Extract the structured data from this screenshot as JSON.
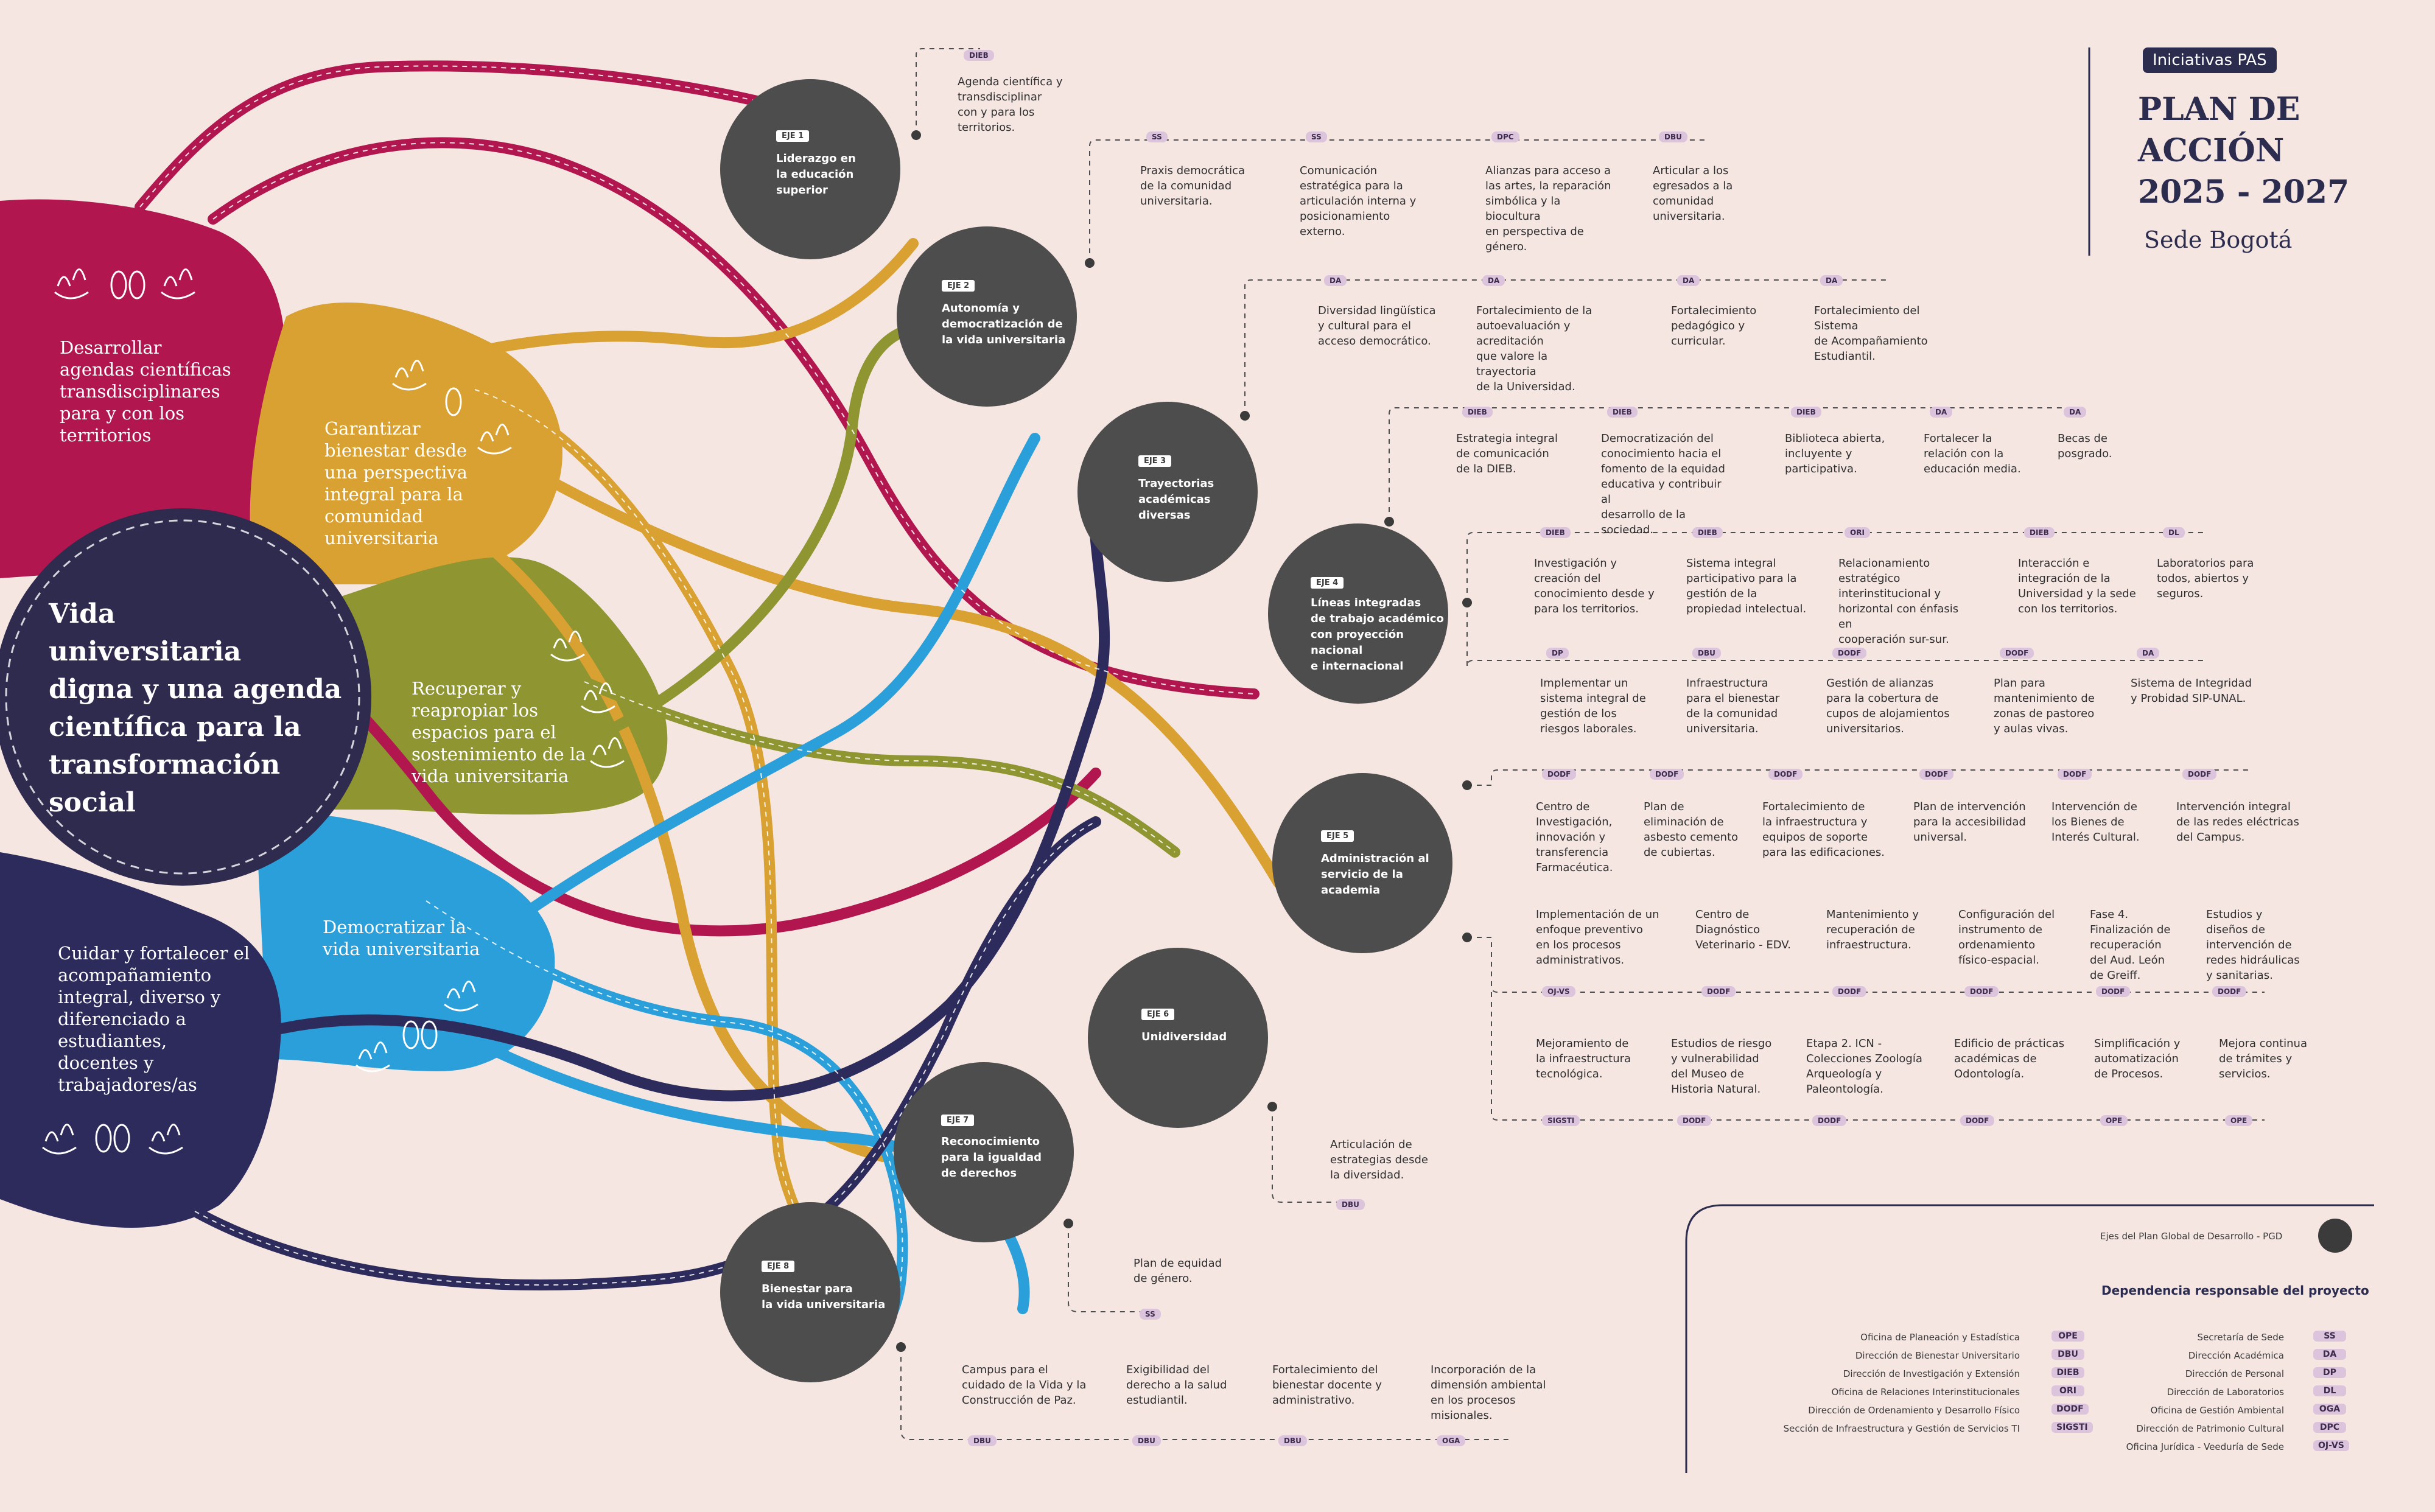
{
  "colors": {
    "background": "#f5e6e2",
    "magenta": "#b1174e",
    "gold": "#d9a131",
    "olive": "#8e9531",
    "blue": "#2a9fda",
    "navy": "#2d2b5b",
    "center": "#2f2b4f",
    "node": "#4d4d4d",
    "tag": "#dcc4dd"
  },
  "header": {
    "badge": "Iniciativas PAS",
    "title_line1": "PLAN DE",
    "title_line2": "ACCIÓN",
    "title_line3": "2025 - 2027",
    "subtitle": "Sede Bogotá"
  },
  "center": {
    "line1": "Vida",
    "line2": "universitaria",
    "line3": "digna y una agenda",
    "line4": "científica para la",
    "line5": "transformación",
    "line6": "social"
  },
  "petals": {
    "magenta": [
      "Desarrollar",
      "agendas científicas",
      "transdisciplinares",
      "para y con los",
      "territorios"
    ],
    "gold": [
      "Garantizar",
      "bienestar desde",
      "una perspectiva",
      "integral para la",
      "comunidad",
      "universitaria"
    ],
    "olive": [
      "Recuperar y",
      "reapropiar los",
      "espacios para el",
      "sostenimiento de la",
      "vida universitaria"
    ],
    "blue": [
      "Democratizar la",
      "vida universitaria"
    ],
    "navy": [
      "Cuidar y fortalecer el",
      "acompañamiento",
      "integral, diverso y",
      "diferenciado a",
      "estudiantes,",
      "docentes y",
      "trabajadores/as"
    ]
  },
  "ejes": [
    {
      "label": "EJE 1",
      "title": [
        "Liderazgo en",
        "la educación",
        "superior"
      ]
    },
    {
      "label": "EJE 2",
      "title": [
        "Autonomía y",
        "democratización de",
        "la vida universitaria"
      ]
    },
    {
      "label": "EJE 3",
      "title": [
        "Trayectorias",
        "académicas",
        "diversas"
      ]
    },
    {
      "label": "EJE 4",
      "title": [
        "Líneas integradas",
        "de trabajo académico",
        "con proyección",
        "nacional",
        "e internacional"
      ]
    },
    {
      "label": "EJE 5",
      "title": [
        "Administración al",
        "servicio de la",
        "academia"
      ]
    },
    {
      "label": "EJE 6",
      "title": [
        "Unidiversidad"
      ]
    },
    {
      "label": "EJE 7",
      "title": [
        "Reconocimiento",
        "para la igualdad",
        "de derechos"
      ]
    },
    {
      "label": "EJE 8",
      "title": [
        "Bienestar para",
        "la vida universitaria"
      ]
    }
  ],
  "initiatives": {
    "eje1": [
      {
        "tag": "DIEB",
        "text": [
          "Agenda científica y transdisciplinar",
          "con y para los territorios."
        ]
      }
    ],
    "eje2": [
      {
        "tag": "SS",
        "text": [
          "Praxis democrática",
          "de la comunidad",
          "universitaria."
        ]
      },
      {
        "tag": "SS",
        "text": [
          "Comunicación",
          "estratégica para la",
          "articulación interna y",
          "posicionamiento",
          "externo."
        ]
      },
      {
        "tag": "DPC",
        "text": [
          "Alianzas para acceso a",
          "las artes, la reparación",
          "simbólica y la biocultura",
          "en perspectiva de",
          "género."
        ]
      },
      {
        "tag": "DBU",
        "text": [
          "Articular a los",
          "egresados a la",
          "comunidad",
          "universitaria."
        ]
      }
    ],
    "eje3": [
      {
        "tag": "DA",
        "text": [
          "Diversidad lingüística",
          "y cultural para el",
          "acceso democrático."
        ]
      },
      {
        "tag": "DA",
        "text": [
          "Fortalecimiento de la",
          "autoevaluación y acreditación",
          "que valore la trayectoria",
          "de la Universidad."
        ]
      },
      {
        "tag": "DA",
        "text": [
          "Fortalecimiento",
          "pedagógico y",
          "curricular."
        ]
      },
      {
        "tag": "DA",
        "text": [
          "Fortalecimiento del Sistema",
          "de Acompañamiento",
          "Estudiantil."
        ]
      }
    ],
    "eje4a": [
      {
        "tag": "DIEB",
        "text": [
          "Estrategia integral",
          "de comunicación",
          "de la DIEB."
        ]
      },
      {
        "tag": "DIEB",
        "text": [
          "Democratización del",
          "conocimiento hacia el",
          "fomento de la equidad",
          "educativa y contribuir al",
          "desarrollo de la sociedad."
        ]
      },
      {
        "tag": "DIEB",
        "text": [
          "Biblioteca abierta,",
          "incluyente y",
          "participativa."
        ]
      },
      {
        "tag": "DA",
        "text": [
          "Fortalecer la",
          "relación con la",
          "educación media."
        ]
      },
      {
        "tag": "DA",
        "text": [
          "Becas de",
          "posgrado."
        ]
      }
    ],
    "eje4b": [
      {
        "tag": "DIEB",
        "text": [
          "Investigación y",
          "creación del",
          "conocimiento desde y",
          "para los territorios."
        ]
      },
      {
        "tag": "DIEB",
        "text": [
          "Sistema integral",
          "participativo para la",
          "gestión de la",
          "propiedad intelectual."
        ]
      },
      {
        "tag": "ORI",
        "text": [
          "Relacionamiento estratégico",
          "interinstitucional y",
          "horizontal con énfasis en",
          "cooperación sur-sur."
        ]
      },
      {
        "tag": "DIEB",
        "text": [
          "Interacción e",
          "integración de la",
          "Universidad y la sede",
          "con los territorios."
        ]
      },
      {
        "tag": "DL",
        "text": [
          "Laboratorios para",
          "todos, abiertos y",
          "seguros."
        ]
      }
    ],
    "eje5a": [
      {
        "tag": "DP",
        "text": [
          "Implementar un",
          "sistema integral de",
          "gestión de los",
          "riesgos laborales."
        ]
      },
      {
        "tag": "DBU",
        "text": [
          "Infraestructura",
          "para el bienestar",
          "de la comunidad",
          "universitaria."
        ]
      },
      {
        "tag": "DODF",
        "text": [
          "Gestión de alianzas",
          "para la cobertura de",
          "cupos de alojamientos",
          "universitarios."
        ]
      },
      {
        "tag": "DODF",
        "text": [
          "Plan para",
          "mantenimiento de",
          "zonas de pastoreo",
          "y aulas vivas."
        ]
      },
      {
        "tag": "DA",
        "text": [
          "Sistema de Integridad",
          "y Probidad SIP-UNAL."
        ]
      }
    ],
    "eje5b": [
      {
        "tag": "DODF",
        "text": [
          "Centro de",
          "Investigación,",
          "innovación y",
          "transferencia",
          "Farmacéutica."
        ]
      },
      {
        "tag": "DODF",
        "text": [
          "Plan de",
          "eliminación de",
          "asbesto cemento",
          "de cubiertas."
        ]
      },
      {
        "tag": "DODF",
        "text": [
          "Fortalecimiento de",
          "la infraestructura y",
          "equipos de soporte",
          "para las edificaciones."
        ]
      },
      {
        "tag": "DODF",
        "text": [
          "Plan de intervención",
          "para la accesibilidad",
          "universal."
        ]
      },
      {
        "tag": "DODF",
        "text": [
          "Intervención de",
          "los Bienes de",
          "Interés Cultural."
        ]
      },
      {
        "tag": "DODF",
        "text": [
          "Intervención integral",
          "de las redes eléctricas",
          "del Campus."
        ]
      }
    ],
    "eje5c": [
      {
        "tag": "OJ-VS",
        "text": [
          "Implementación de un",
          "enfoque preventivo",
          "en los procesos",
          "administrativos."
        ]
      },
      {
        "tag": "DODF",
        "text": [
          "Centro de",
          "Diagnóstico",
          "Veterinario - EDV."
        ]
      },
      {
        "tag": "DODF",
        "text": [
          "Mantenimiento y",
          "recuperación de",
          "infraestructura."
        ]
      },
      {
        "tag": "DODF",
        "text": [
          "Configuración del",
          "instrumento de",
          "ordenamiento",
          "físico-espacial."
        ]
      },
      {
        "tag": "DODF",
        "text": [
          "Fase 4.",
          "Finalización de",
          "recuperación",
          "del Aud. León",
          "de Greiff."
        ]
      },
      {
        "tag": "DODF",
        "text": [
          "Estudios y",
          "diseños de",
          "intervención de",
          "redes hidráulicas",
          "y sanitarias."
        ]
      }
    ],
    "eje5d": [
      {
        "tag": "SIGSTI",
        "text": [
          "Mejoramiento de",
          "la infraestructura",
          "tecnológica."
        ]
      },
      {
        "tag": "DODF",
        "text": [
          "Estudios de riesgo",
          "y vulnerabilidad",
          "del Museo de",
          "Historia Natural."
        ]
      },
      {
        "tag": "DODF",
        "text": [
          "Etapa 2. ICN -",
          "Colecciones Zoología",
          "Arqueología y",
          "Paleontología."
        ]
      },
      {
        "tag": "DODF",
        "text": [
          "Edificio de prácticas",
          "académicas de",
          "Odontología."
        ]
      },
      {
        "tag": "OPE",
        "text": [
          "Simplificación y",
          "automatización",
          "de Procesos."
        ]
      },
      {
        "tag": "OPE",
        "text": [
          "Mejora continua",
          "de trámites y",
          "servicios."
        ]
      }
    ],
    "eje6": [
      {
        "tag": "DBU",
        "text": [
          "Articulación de",
          "estrategias desde",
          "la diversidad."
        ]
      }
    ],
    "eje7": [
      {
        "tag": "SS",
        "text": [
          "Plan de equidad",
          "de género."
        ]
      }
    ],
    "eje8": [
      {
        "tag": "DBU",
        "text": [
          "Campus para el",
          "cuidado de la Vida y la",
          "Construcción de Paz."
        ]
      },
      {
        "tag": "DBU",
        "text": [
          "Exigibilidad del",
          "derecho a la salud",
          "estudiantil."
        ]
      },
      {
        "tag": "DBU",
        "text": [
          "Fortalecimiento del",
          "bienestar docente y",
          "administrativo."
        ]
      },
      {
        "tag": "OGA",
        "text": [
          "Incorporación de la",
          "dimensión ambiental",
          "en los procesos",
          "misionales."
        ]
      }
    ]
  },
  "legend": {
    "ejes_caption": "Ejes del Plan Global de Desarrollo - PGD",
    "dependency_title": "Dependencia responsable del proyecto",
    "left": [
      {
        "name": "Oficina de Planeación y Estadística",
        "code": "OPE"
      },
      {
        "name": "Dirección de Bienestar Universitario",
        "code": "DBU"
      },
      {
        "name": "Dirección de Investigación y Extensión",
        "code": "DIEB"
      },
      {
        "name": "Oficina de Relaciones Interinstitucionales",
        "code": "ORI"
      },
      {
        "name": "Dirección de Ordenamiento y Desarrollo Físico",
        "code": "DODF"
      },
      {
        "name": "Sección de Infraestructura y Gestión de Servicios TI",
        "code": "SIGSTI"
      }
    ],
    "right": [
      {
        "name": "Secretaría de Sede",
        "code": "SS"
      },
      {
        "name": "Dirección Académica",
        "code": "DA"
      },
      {
        "name": "Dirección de Personal",
        "code": "DP"
      },
      {
        "name": "Dirección de Laboratorios",
        "code": "DL"
      },
      {
        "name": "Oficina de Gestión Ambiental",
        "code": "OGA"
      },
      {
        "name": "Dirección de Patrimonio Cultural",
        "code": "DPC"
      },
      {
        "name": "Oficina Jurídica - Veeduría de Sede",
        "code": "OJ-VS"
      }
    ]
  }
}
